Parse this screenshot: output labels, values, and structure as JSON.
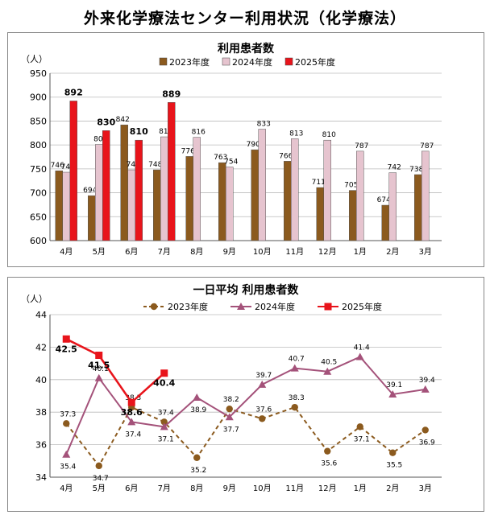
{
  "page_title": "外来化学療法センター利用状況（化学療法）",
  "chart_data": [
    {
      "type": "bar",
      "title": "利用患者数",
      "ylabel": "（人）",
      "ylim": [
        600,
        950
      ],
      "yticks": [
        600,
        650,
        700,
        750,
        800,
        850,
        900,
        950
      ],
      "categories": [
        "4月",
        "5月",
        "6月",
        "7月",
        "8月",
        "9月",
        "10月",
        "11月",
        "12月",
        "1月",
        "2月",
        "3月"
      ],
      "legend_position": "top-center",
      "grid": "horizontal",
      "series": [
        {
          "name": "2023年度",
          "color": "#8b5a1e",
          "values": [
            746,
            694,
            842,
            748,
            776,
            763,
            790,
            766,
            711,
            705,
            674,
            738
          ]
        },
        {
          "name": "2024年度",
          "color": "#e6c4cf",
          "values": [
            743,
            801,
            748,
            817,
            816,
            754,
            833,
            813,
            810,
            787,
            742,
            787
          ]
        },
        {
          "name": "2025年度",
          "color": "#e8141b",
          "values": [
            892,
            830,
            810,
            889,
            null,
            null,
            null,
            null,
            null,
            null,
            null,
            null
          ]
        }
      ]
    },
    {
      "type": "line",
      "title": "一日平均 利用患者数",
      "ylabel": "（人）",
      "ylim": [
        34,
        44
      ],
      "yticks": [
        34,
        36,
        38,
        40,
        42,
        44
      ],
      "categories": [
        "4月",
        "5月",
        "6月",
        "7月",
        "8月",
        "9月",
        "10月",
        "11月",
        "12月",
        "1月",
        "2月",
        "3月"
      ],
      "legend_position": "top-center",
      "grid": "horizontal",
      "series": [
        {
          "name": "2023年度",
          "color": "#8b5a1e",
          "marker": "circle",
          "dashed": true,
          "values": [
            37.3,
            34.7,
            38.3,
            37.4,
            35.2,
            38.2,
            37.6,
            38.3,
            35.6,
            37.1,
            35.5,
            36.9
          ]
        },
        {
          "name": "2024年度",
          "color": "#a4527a",
          "marker": "triangle",
          "dashed": false,
          "values": [
            35.4,
            40.1,
            37.4,
            37.1,
            38.9,
            37.7,
            39.7,
            40.7,
            40.5,
            41.4,
            39.1,
            39.4
          ]
        },
        {
          "name": "2025年度",
          "color": "#e8141b",
          "marker": "square",
          "dashed": false,
          "values": [
            42.5,
            41.5,
            38.6,
            40.4,
            null,
            null,
            null,
            null,
            null,
            null,
            null,
            null
          ]
        }
      ]
    }
  ]
}
